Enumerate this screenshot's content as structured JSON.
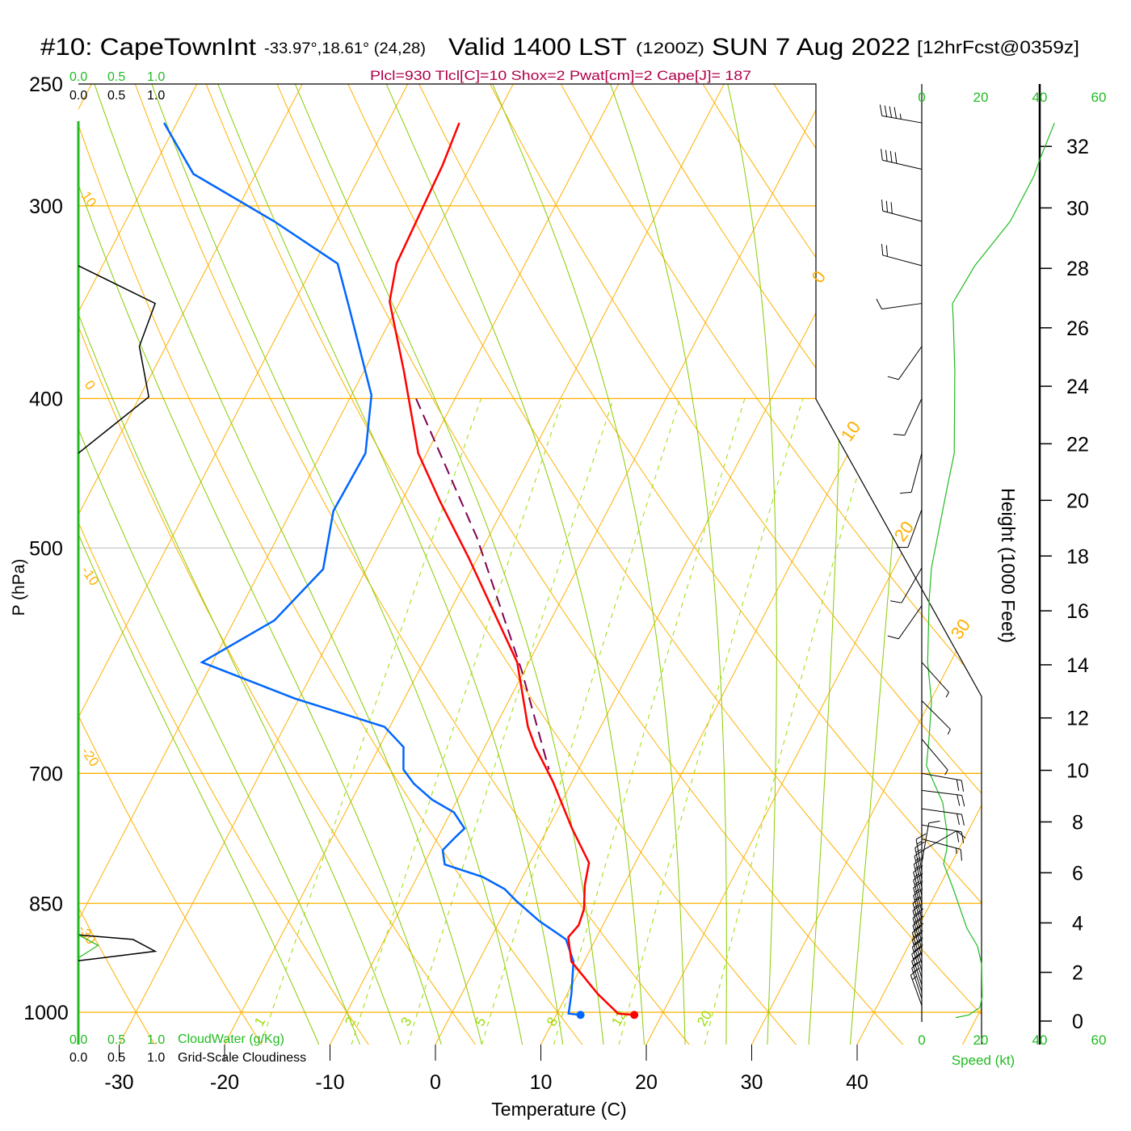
{
  "header": {
    "station": "#10: CapeTownInt",
    "coords": "-33.97°,18.61° (24,28)",
    "valid": "Valid 1400 LST",
    "utc": "(1200Z)",
    "date": "SUN 7 Aug 2022",
    "forecast": "[12hrFcst@0359z]"
  },
  "stats": "Plcl=930 Tlcl[C]=10 Shox=2 Pwat[cm]=2 Cape[J]= 187",
  "cloud_scale": {
    "green_ticks": [
      "0.0",
      "0.5",
      "1.0"
    ],
    "black_ticks": [
      "0.0",
      "0.5",
      "1.0"
    ],
    "cloudwater_label": "CloudWater (g/Kg)",
    "cloudiness_label": "Grid-Scale Cloudiness"
  },
  "colors": {
    "temperature": "#ff0000",
    "dewpoint": "#0066ff",
    "parcel": "#800050",
    "isotherm": "#ffb000",
    "moist_adiabat": "#88cc00",
    "mixing_ratio": "#99dd00",
    "stats": "#b0004a",
    "speed": "#22bb22"
  },
  "chart_data": {
    "type": "skew-t",
    "xlabel": "Temperature (C)",
    "ylabel": "P (hPa)",
    "y2label": "Height (1000 Feet)",
    "speed_label": "Speed (kt)",
    "pressure_range": [
      1049,
      250
    ],
    "pressure_ticks": [
      "250",
      "300",
      "400",
      "500",
      "700",
      "850",
      "1000"
    ],
    "temperature_ticks": [
      "-30",
      "-20",
      "-10",
      "0",
      "10",
      "20",
      "30",
      "40"
    ],
    "height_ticks": [
      "0",
      "2",
      "4",
      "6",
      "8",
      "10",
      "12",
      "14",
      "16",
      "18",
      "20",
      "22",
      "24",
      "26",
      "28",
      "30",
      "32"
    ],
    "speed_ticks": [
      "0",
      "20",
      "40",
      "60"
    ],
    "isotherm_labels": [
      "0",
      "10",
      "20",
      "30"
    ],
    "dry_adiabat_labels": [
      "10",
      "0",
      "-10",
      "-20",
      "-30"
    ],
    "mixing_ratio_labels": [
      "1",
      "2",
      "3",
      "5",
      "8",
      "12",
      "20"
    ],
    "temperature": [
      [
        265,
        -43.2
      ],
      [
        282,
        -42.7
      ],
      [
        327,
        -42.2
      ],
      [
        346,
        -41.0
      ],
      [
        384,
        -36.2
      ],
      [
        434,
        -30.8
      ],
      [
        466,
        -26.4
      ],
      [
        507,
        -20.9
      ],
      [
        593,
        -11.1
      ],
      [
        653,
        -6.9
      ],
      [
        673,
        -5.2
      ],
      [
        709,
        -1.8
      ],
      [
        760,
        2.3
      ],
      [
        800,
        5.6
      ],
      [
        827,
        6.3
      ],
      [
        857,
        7.4
      ],
      [
        878,
        7.7
      ],
      [
        894,
        7.3
      ],
      [
        927,
        8.8
      ],
      [
        973,
        12.9
      ],
      [
        1002,
        15.8
      ],
      [
        1004,
        17.4
      ]
    ],
    "dewpoint": [
      [
        265,
        -71.2
      ],
      [
        286,
        -65.9
      ],
      [
        307,
        -55.9
      ],
      [
        327,
        -47.8
      ],
      [
        348,
        -44.7
      ],
      [
        398,
        -38.1
      ],
      [
        434,
        -35.8
      ],
      [
        473,
        -36.0
      ],
      [
        516,
        -34.1
      ],
      [
        557,
        -36.2
      ],
      [
        593,
        -41.0
      ],
      [
        626,
        -30.4
      ],
      [
        653,
        -20.5
      ],
      [
        673,
        -17.7
      ],
      [
        696,
        -16.6
      ],
      [
        711,
        -14.9
      ],
      [
        728,
        -12.4
      ],
      [
        742,
        -9.7
      ],
      [
        760,
        -7.9
      ],
      [
        769,
        -8.3
      ],
      [
        785,
        -8.9
      ],
      [
        802,
        -8.0
      ],
      [
        817,
        -3.8
      ],
      [
        832,
        -1.1
      ],
      [
        847,
        0.6
      ],
      [
        873,
        3.8
      ],
      [
        889,
        6.1
      ],
      [
        897,
        7.2
      ],
      [
        927,
        9.0
      ],
      [
        973,
        10.4
      ],
      [
        1002,
        11.1
      ],
      [
        1004,
        12.3
      ]
    ],
    "parcel": [
      [
        400,
        -33.7
      ],
      [
        492,
        -21.1
      ],
      [
        600,
        -10.3
      ],
      [
        696,
        -2.8
      ]
    ],
    "surface": {
      "p": 1004,
      "T": 17.4,
      "Td": 12.3
    },
    "wind_barbs": [
      [
        265,
        280,
        45
      ],
      [
        284,
        283,
        40
      ],
      [
        307,
        285,
        30
      ],
      [
        328,
        285,
        20
      ],
      [
        347,
        262,
        10
      ],
      [
        370,
        215,
        10
      ],
      [
        400,
        205,
        10
      ],
      [
        434,
        195,
        10
      ],
      [
        472,
        200,
        10
      ],
      [
        515,
        210,
        10
      ],
      [
        545,
        215,
        10
      ],
      [
        593,
        138,
        5
      ],
      [
        628,
        135,
        5
      ],
      [
        665,
        140,
        5
      ],
      [
        700,
        100,
        20
      ],
      [
        718,
        97,
        20
      ],
      [
        738,
        98,
        20
      ],
      [
        756,
        100,
        20
      ],
      [
        772,
        105,
        15
      ],
      [
        786,
        60,
        10
      ],
      [
        800,
        10,
        10
      ],
      [
        810,
        350,
        15
      ],
      [
        820,
        348,
        15
      ],
      [
        830,
        347,
        15
      ],
      [
        840,
        346,
        15
      ],
      [
        850,
        345,
        15
      ],
      [
        860,
        345,
        15
      ],
      [
        870,
        345,
        15
      ],
      [
        880,
        345,
        15
      ],
      [
        890,
        344,
        15
      ],
      [
        900,
        344,
        20
      ],
      [
        910,
        344,
        20
      ],
      [
        920,
        344,
        20
      ],
      [
        930,
        343,
        20
      ],
      [
        940,
        343,
        20
      ],
      [
        950,
        343,
        20
      ],
      [
        960,
        342,
        20
      ],
      [
        970,
        342,
        15
      ],
      [
        980,
        342,
        15
      ],
      [
        990,
        340,
        15
      ]
    ],
    "wind_speed": [
      [
        265,
        45
      ],
      [
        280,
        40
      ],
      [
        287,
        38
      ],
      [
        307,
        30
      ],
      [
        328,
        18
      ],
      [
        347,
        10.4
      ],
      [
        357,
        10.7
      ],
      [
        384,
        11.2
      ],
      [
        434,
        11
      ],
      [
        455,
        8.8
      ],
      [
        515,
        3.3
      ],
      [
        541,
        2.5
      ],
      [
        593,
        2
      ],
      [
        629,
        3.3
      ],
      [
        663,
        2.5
      ],
      [
        692,
        1.6
      ],
      [
        712,
        4.4
      ],
      [
        731,
        7.1
      ],
      [
        763,
        8.5
      ],
      [
        784,
        8.5
      ],
      [
        801,
        7.4
      ],
      [
        832,
        10.7
      ],
      [
        882,
        15.3
      ],
      [
        906,
        18.9
      ],
      [
        931,
        20.3
      ],
      [
        977,
        20.5
      ],
      [
        993,
        19.7
      ],
      [
        1004,
        16
      ],
      [
        1008,
        11.5
      ]
    ],
    "cloudiness": [
      [
        328,
        0
      ],
      [
        347,
        0.97
      ],
      [
        370,
        0.77
      ],
      [
        399,
        0.89
      ],
      [
        434,
        0
      ],
      [
        891,
        0
      ],
      [
        897,
        0.69
      ],
      [
        913,
        0.97
      ],
      [
        926,
        0
      ]
    ],
    "cloud_water": [
      [
        891,
        0
      ],
      [
        905,
        0.25
      ],
      [
        922,
        0
      ]
    ]
  }
}
